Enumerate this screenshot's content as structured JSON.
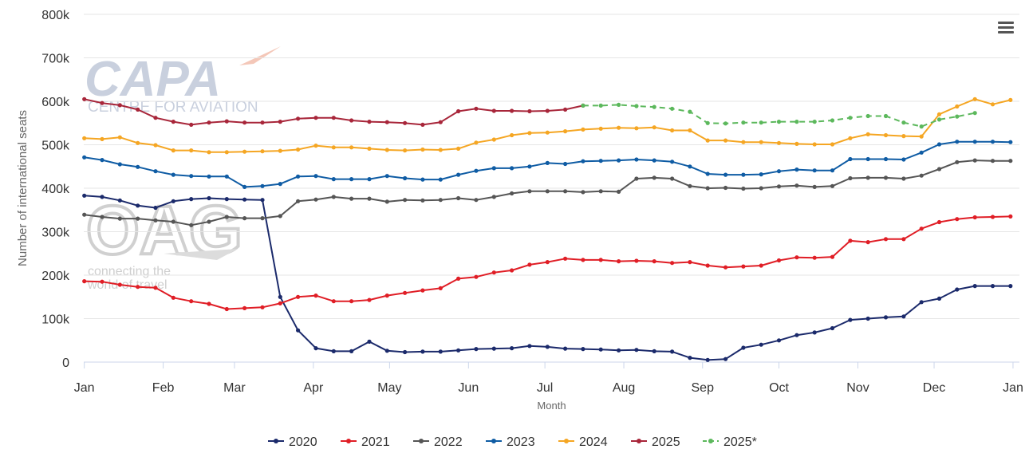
{
  "chart_data": {
    "type": "line",
    "ylabel": "Number of international seats",
    "xlabel": "Month",
    "ylim": [
      0,
      800000
    ],
    "yticks": [
      0,
      100000,
      200000,
      300000,
      400000,
      500000,
      600000,
      700000,
      800000
    ],
    "ytick_labels": [
      "0",
      "100k",
      "200k",
      "300k",
      "400k",
      "500k",
      "600k",
      "700k",
      "800k"
    ],
    "x_unit": "week of year",
    "months": [
      "Jan",
      "Feb",
      "Mar",
      "Apr",
      "May",
      "Jun",
      "Jul",
      "Aug",
      "Sep",
      "Oct",
      "Nov",
      "Dec",
      "Jan"
    ],
    "month_weeks": [
      1,
      5.43,
      9.43,
      13.86,
      18.14,
      22.57,
      26.86,
      31.29,
      35.71,
      40,
      44.43,
      48.71,
      53.14
    ],
    "grid": true,
    "legend_position": "bottom-center",
    "series": [
      {
        "name": "2020",
        "color": "#1b2a6b",
        "dashed": false,
        "x": [
          1,
          2,
          3,
          4,
          5,
          6,
          7,
          8,
          9,
          10,
          11,
          12,
          13,
          14,
          15,
          16,
          17,
          18,
          19,
          20,
          21,
          22,
          23,
          24,
          25,
          26,
          27,
          28,
          29,
          30,
          31,
          32,
          33,
          34,
          35,
          36,
          37,
          38,
          39,
          40,
          41,
          42,
          43,
          44,
          45,
          46,
          47,
          48,
          49,
          50,
          51,
          52,
          53
        ],
        "values": [
          383000,
          380000,
          372000,
          360000,
          355000,
          370000,
          375000,
          377000,
          375000,
          374000,
          373000,
          150000,
          73000,
          32000,
          25000,
          25000,
          47000,
          26000,
          23000,
          24000,
          24000,
          27000,
          30000,
          31000,
          32000,
          37000,
          35000,
          31000,
          30000,
          29000,
          27000,
          28000,
          25000,
          24000,
          10000,
          5000,
          7000,
          33000,
          40000,
          50000,
          62000,
          68000,
          78000,
          97000,
          100000,
          103000,
          105000,
          138000,
          146000,
          167000,
          175000,
          175000,
          175000
        ]
      },
      {
        "name": "2021",
        "color": "#e01e26",
        "dashed": false,
        "x": [
          1,
          2,
          3,
          4,
          5,
          6,
          7,
          8,
          9,
          10,
          11,
          12,
          13,
          14,
          15,
          16,
          17,
          18,
          19,
          20,
          21,
          22,
          23,
          24,
          25,
          26,
          27,
          28,
          29,
          30,
          31,
          32,
          33,
          34,
          35,
          36,
          37,
          38,
          39,
          40,
          41,
          42,
          43,
          44,
          45,
          46,
          47,
          48,
          49,
          50,
          51,
          52,
          53
        ],
        "values": [
          186000,
          185000,
          178000,
          173000,
          171000,
          148000,
          140000,
          134000,
          122000,
          124000,
          126000,
          135000,
          150000,
          153000,
          140000,
          140000,
          143000,
          153000,
          159000,
          165000,
          170000,
          192000,
          196000,
          206000,
          211000,
          224000,
          230000,
          238000,
          235000,
          235000,
          232000,
          233000,
          232000,
          228000,
          230000,
          222000,
          218000,
          220000,
          222000,
          234000,
          241000,
          240000,
          242000,
          279000,
          276000,
          283000,
          283000,
          307000,
          322000,
          329000,
          333000,
          334000,
          335000
        ]
      },
      {
        "name": "2022",
        "color": "#555555",
        "dashed": false,
        "x": [
          1,
          2,
          3,
          4,
          5,
          6,
          7,
          8,
          9,
          10,
          11,
          12,
          13,
          14,
          15,
          16,
          17,
          18,
          19,
          20,
          21,
          22,
          23,
          24,
          25,
          26,
          27,
          28,
          29,
          30,
          31,
          32,
          33,
          34,
          35,
          36,
          37,
          38,
          39,
          40,
          41,
          42,
          43,
          44,
          45,
          46,
          47,
          48,
          49,
          50,
          51,
          52,
          53
        ],
        "values": [
          339000,
          334000,
          330000,
          330000,
          326000,
          323000,
          315000,
          323000,
          334000,
          331000,
          331000,
          336000,
          370000,
          374000,
          380000,
          376000,
          376000,
          369000,
          373000,
          372000,
          373000,
          377000,
          373000,
          380000,
          388000,
          393000,
          393000,
          393000,
          391000,
          393000,
          392000,
          422000,
          424000,
          422000,
          405000,
          400000,
          401000,
          399000,
          400000,
          404000,
          406000,
          403000,
          405000,
          423000,
          424000,
          424000,
          422000,
          429000,
          444000,
          460000,
          464000,
          463000,
          463000
        ]
      },
      {
        "name": "2023",
        "color": "#0f5ca4",
        "dashed": false,
        "x": [
          1,
          2,
          3,
          4,
          5,
          6,
          7,
          8,
          9,
          10,
          11,
          12,
          13,
          14,
          15,
          16,
          17,
          18,
          19,
          20,
          21,
          22,
          23,
          24,
          25,
          26,
          27,
          28,
          29,
          30,
          31,
          32,
          33,
          34,
          35,
          36,
          37,
          38,
          39,
          40,
          41,
          42,
          43,
          44,
          45,
          46,
          47,
          48,
          49,
          50,
          51,
          52,
          53
        ],
        "values": [
          471000,
          465000,
          455000,
          449000,
          439000,
          431000,
          428000,
          427000,
          427000,
          403000,
          405000,
          410000,
          427000,
          428000,
          421000,
          421000,
          421000,
          428000,
          423000,
          420000,
          420000,
          431000,
          440000,
          446000,
          446000,
          450000,
          458000,
          456000,
          462000,
          463000,
          464000,
          466000,
          464000,
          461000,
          450000,
          433000,
          431000,
          431000,
          432000,
          439000,
          443000,
          441000,
          441000,
          467000,
          467000,
          467000,
          466000,
          482000,
          501000,
          507000,
          507000,
          507000,
          506000
        ]
      },
      {
        "name": "2024",
        "color": "#f5a623",
        "dashed": false,
        "x": [
          1,
          2,
          3,
          4,
          5,
          6,
          7,
          8,
          9,
          10,
          11,
          12,
          13,
          14,
          15,
          16,
          17,
          18,
          19,
          20,
          21,
          22,
          23,
          24,
          25,
          26,
          27,
          28,
          29,
          30,
          31,
          32,
          33,
          34,
          35,
          36,
          37,
          38,
          39,
          40,
          41,
          42,
          43,
          44,
          45,
          46,
          47,
          48,
          49,
          50,
          51,
          52,
          53
        ],
        "values": [
          515000,
          513000,
          517000,
          504000,
          499000,
          487000,
          487000,
          483000,
          483000,
          484000,
          485000,
          486000,
          489000,
          498000,
          494000,
          494000,
          491000,
          488000,
          487000,
          489000,
          488000,
          491000,
          505000,
          512000,
          522000,
          527000,
          528000,
          531000,
          535000,
          537000,
          539000,
          538000,
          540000,
          533000,
          533000,
          510000,
          510000,
          506000,
          506000,
          504000,
          502000,
          501000,
          501000,
          515000,
          524000,
          522000,
          520000,
          519000,
          570000,
          588000,
          605000,
          593000,
          603000
        ]
      },
      {
        "name": "2025",
        "color": "#a8263a",
        "dashed": false,
        "x": [
          1,
          2,
          3,
          4,
          5,
          6,
          7,
          8,
          9,
          10,
          11,
          12,
          13,
          14,
          15,
          16,
          17,
          18,
          19,
          20,
          21,
          22,
          23,
          24,
          25,
          26,
          27,
          28,
          29
        ],
        "values": [
          605000,
          596000,
          591000,
          581000,
          562000,
          553000,
          546000,
          551000,
          554000,
          551000,
          551000,
          553000,
          560000,
          562000,
          562000,
          556000,
          553000,
          552000,
          550000,
          546000,
          552000,
          577000,
          583000,
          578000,
          578000,
          577000,
          578000,
          581000,
          590000
        ]
      },
      {
        "name": "2025*",
        "color": "#5cb85c",
        "dashed": true,
        "x": [
          29,
          30,
          31,
          32,
          33,
          34,
          35,
          36,
          37,
          38,
          39,
          40,
          41,
          42,
          43,
          44,
          45,
          46,
          47,
          48,
          49,
          50,
          51
        ],
        "values": [
          590000,
          590000,
          592000,
          589000,
          587000,
          583000,
          576000,
          550000,
          549000,
          551000,
          551000,
          553000,
          553000,
          553000,
          556000,
          562000,
          566000,
          566000,
          551000,
          542000,
          558000,
          565000,
          573000
        ]
      }
    ]
  },
  "watermark": {
    "capa_logo": "CAPA",
    "capa_tagline": "CENTRE FOR AVIATION",
    "oag_logo": "OAG",
    "oag_tagline_1": "connecting the",
    "oag_tagline_2": "world of travel"
  },
  "menu_icon": "hamburger-menu-icon"
}
